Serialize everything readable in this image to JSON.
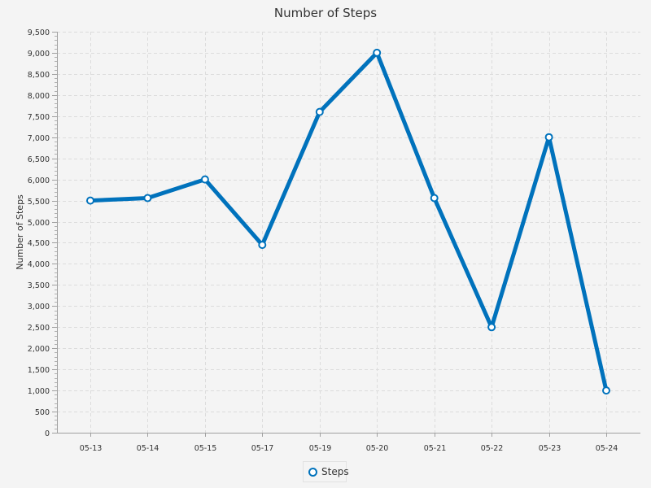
{
  "chart_data": {
    "type": "line",
    "title": "Number of Steps",
    "xlabel": "",
    "ylabel": "Number of Steps",
    "categories": [
      "05-13",
      "05-14",
      "05-15",
      "05-17",
      "05-19",
      "05-20",
      "05-21",
      "05-22",
      "05-23",
      "05-24"
    ],
    "series": [
      {
        "name": "Steps",
        "values": [
          5500,
          5560,
          6000,
          4450,
          7600,
          9000,
          5560,
          2500,
          7000,
          1000
        ],
        "color": "#0072bc"
      }
    ],
    "ylim": [
      0,
      9500
    ],
    "y_ticks": [
      0,
      500,
      1000,
      1500,
      2000,
      2500,
      3000,
      3500,
      4000,
      4500,
      5000,
      5500,
      6000,
      6500,
      7000,
      7500,
      8000,
      8500,
      9000,
      9500
    ],
    "y_tick_labels": [
      "0",
      "500",
      "1,000",
      "1,500",
      "2,000",
      "2,500",
      "3,000",
      "3,500",
      "4,000",
      "4,500",
      "5,000",
      "5,500",
      "6,000",
      "6,500",
      "7,000",
      "7,500",
      "8,000",
      "8,500",
      "9,000",
      "9,500"
    ],
    "grid": true,
    "legend_position": "bottom-center"
  }
}
